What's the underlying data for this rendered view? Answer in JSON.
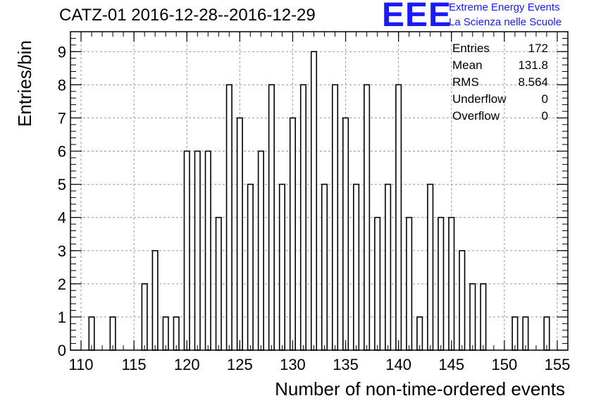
{
  "title": "CATZ-01 2016-12-28--2016-12-29",
  "logo": {
    "letters": "EEE",
    "line1": "Extreme Energy Events",
    "line2": "La Scienza nelle Scuole"
  },
  "stats": [
    {
      "label": "Entries",
      "value": "172"
    },
    {
      "label": "Mean",
      "value": "131.8"
    },
    {
      "label": "RMS",
      "value": "8.564"
    },
    {
      "label": "Underflow",
      "value": "0"
    },
    {
      "label": "Overflow",
      "value": "0"
    }
  ],
  "chart_data": {
    "type": "bar",
    "title": "CATZ-01 2016-12-28--2016-12-29",
    "xlabel": "Number of non-time-ordered events",
    "ylabel": "Entries/bin",
    "xlim": [
      109,
      156
    ],
    "ylim": [
      0,
      9.6
    ],
    "grid": true,
    "x_ticks": [
      110,
      115,
      120,
      125,
      130,
      135,
      140,
      145,
      150,
      155
    ],
    "y_ticks": [
      0,
      1,
      2,
      3,
      4,
      5,
      6,
      7,
      8,
      9
    ],
    "bin_width": 0.5,
    "bins": [
      {
        "x": 111,
        "count": 1
      },
      {
        "x": 113,
        "count": 1
      },
      {
        "x": 116,
        "count": 2
      },
      {
        "x": 117,
        "count": 3
      },
      {
        "x": 118,
        "count": 1
      },
      {
        "x": 119,
        "count": 1
      },
      {
        "x": 120,
        "count": 6
      },
      {
        "x": 121,
        "count": 6
      },
      {
        "x": 122,
        "count": 6
      },
      {
        "x": 123,
        "count": 4
      },
      {
        "x": 124,
        "count": 8
      },
      {
        "x": 125,
        "count": 7
      },
      {
        "x": 126,
        "count": 5
      },
      {
        "x": 127,
        "count": 6
      },
      {
        "x": 128,
        "count": 8
      },
      {
        "x": 129,
        "count": 5
      },
      {
        "x": 130,
        "count": 7
      },
      {
        "x": 131,
        "count": 8
      },
      {
        "x": 132,
        "count": 9
      },
      {
        "x": 133,
        "count": 5
      },
      {
        "x": 134,
        "count": 8
      },
      {
        "x": 135,
        "count": 7
      },
      {
        "x": 136,
        "count": 5
      },
      {
        "x": 137,
        "count": 8
      },
      {
        "x": 138,
        "count": 4
      },
      {
        "x": 139,
        "count": 5
      },
      {
        "x": 140,
        "count": 8
      },
      {
        "x": 141,
        "count": 4
      },
      {
        "x": 142,
        "count": 1
      },
      {
        "x": 143,
        "count": 5
      },
      {
        "x": 144,
        "count": 4
      },
      {
        "x": 145,
        "count": 4
      },
      {
        "x": 146,
        "count": 3
      },
      {
        "x": 147,
        "count": 2
      },
      {
        "x": 148,
        "count": 2
      },
      {
        "x": 151,
        "count": 1
      },
      {
        "x": 152,
        "count": 1
      },
      {
        "x": 154,
        "count": 1
      }
    ]
  }
}
